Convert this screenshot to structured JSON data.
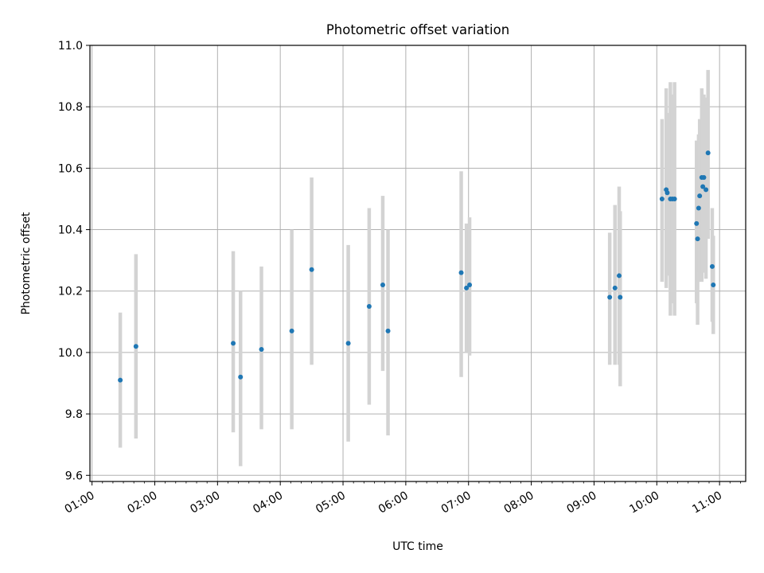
{
  "chart_data": {
    "type": "scatter",
    "title": "Photometric offset variation",
    "xlabel": "UTC time",
    "ylabel": "Photometric offset",
    "x_unit": "UTC hh:mm",
    "xlim": [
      "00:58",
      "11:25"
    ],
    "ylim": [
      9.58,
      11.0
    ],
    "x_ticks": [
      "01:00",
      "02:00",
      "03:00",
      "04:00",
      "05:00",
      "06:00",
      "07:00",
      "08:00",
      "09:00",
      "10:00",
      "11:00"
    ],
    "y_ticks": [
      9.6,
      9.8,
      10.0,
      10.2,
      10.4,
      10.6,
      10.8,
      11.0
    ],
    "grid": true,
    "errorbar_color": "#d3d3d3",
    "point_color": "#1f77b4",
    "points": [
      {
        "x": "01:27",
        "y": 9.91,
        "lo": 9.69,
        "hi": 10.13
      },
      {
        "x": "01:42",
        "y": 10.02,
        "lo": 9.72,
        "hi": 10.32
      },
      {
        "x": "03:15",
        "y": 10.03,
        "lo": 9.74,
        "hi": 10.33
      },
      {
        "x": "03:22",
        "y": 9.92,
        "lo": 9.63,
        "hi": 10.2
      },
      {
        "x": "03:42",
        "y": 10.01,
        "lo": 9.75,
        "hi": 10.28
      },
      {
        "x": "04:11",
        "y": 10.07,
        "lo": 9.75,
        "hi": 10.4
      },
      {
        "x": "04:30",
        "y": 10.27,
        "lo": 9.96,
        "hi": 10.57
      },
      {
        "x": "05:05",
        "y": 10.03,
        "lo": 9.71,
        "hi": 10.35
      },
      {
        "x": "05:25",
        "y": 10.15,
        "lo": 9.83,
        "hi": 10.47
      },
      {
        "x": "05:38",
        "y": 10.22,
        "lo": 9.94,
        "hi": 10.51
      },
      {
        "x": "05:43",
        "y": 10.07,
        "lo": 9.73,
        "hi": 10.4
      },
      {
        "x": "06:53",
        "y": 10.26,
        "lo": 9.92,
        "hi": 10.59
      },
      {
        "x": "06:58",
        "y": 10.21,
        "lo": 10.0,
        "hi": 10.42
      },
      {
        "x": "07:01",
        "y": 10.22,
        "lo": 9.99,
        "hi": 10.44
      },
      {
        "x": "09:15",
        "y": 10.18,
        "lo": 9.96,
        "hi": 10.39
      },
      {
        "x": "09:20",
        "y": 10.21,
        "lo": 9.96,
        "hi": 10.48
      },
      {
        "x": "09:24",
        "y": 10.25,
        "lo": 9.96,
        "hi": 10.54
      },
      {
        "x": "09:25",
        "y": 10.18,
        "lo": 9.89,
        "hi": 10.46
      },
      {
        "x": "10:05",
        "y": 10.5,
        "lo": 10.23,
        "hi": 10.76
      },
      {
        "x": "10:09",
        "y": 10.53,
        "lo": 10.21,
        "hi": 10.86
      },
      {
        "x": "10:10",
        "y": 10.52,
        "lo": 10.25,
        "hi": 10.78
      },
      {
        "x": "10:13",
        "y": 10.5,
        "lo": 10.12,
        "hi": 10.88
      },
      {
        "x": "10:15",
        "y": 10.5,
        "lo": 10.16,
        "hi": 10.84
      },
      {
        "x": "10:17",
        "y": 10.5,
        "lo": 10.12,
        "hi": 10.88
      },
      {
        "x": "10:38",
        "y": 10.42,
        "lo": 10.16,
        "hi": 10.69
      },
      {
        "x": "10:39",
        "y": 10.37,
        "lo": 10.09,
        "hi": 10.66
      },
      {
        "x": "10:40",
        "y": 10.47,
        "lo": 10.23,
        "hi": 10.71
      },
      {
        "x": "10:41",
        "y": 10.51,
        "lo": 10.26,
        "hi": 10.76
      },
      {
        "x": "10:43",
        "y": 10.57,
        "lo": 10.23,
        "hi": 10.86
      },
      {
        "x": "10:44",
        "y": 10.54,
        "lo": 10.26,
        "hi": 10.81
      },
      {
        "x": "10:45",
        "y": 10.57,
        "lo": 10.29,
        "hi": 10.84
      },
      {
        "x": "10:47",
        "y": 10.53,
        "lo": 10.24,
        "hi": 10.83
      },
      {
        "x": "10:49",
        "y": 10.65,
        "lo": 10.37,
        "hi": 10.92
      },
      {
        "x": "10:53",
        "y": 10.28,
        "lo": 10.1,
        "hi": 10.47
      },
      {
        "x": "10:54",
        "y": 10.22,
        "lo": 10.06,
        "hi": 10.38
      }
    ]
  }
}
